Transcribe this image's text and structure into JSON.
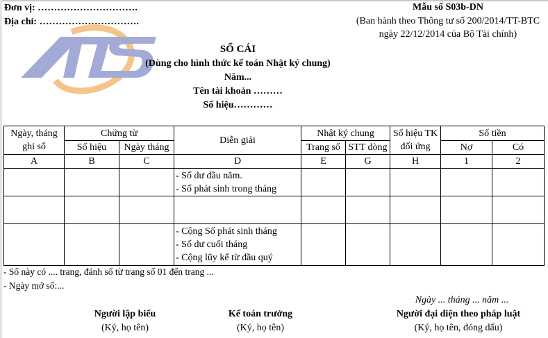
{
  "header": {
    "don_vi": "Đơn vị: ………………………….",
    "dia_chi": "Địa chỉ: ………………………….",
    "form_code": "Mẫu số S03b-DN",
    "decree_line1": "(Ban hành theo Thông tư số 200/2014/TT-BTC",
    "decree_line2": "ngày 22/12/2014 của Bộ Tài chính)"
  },
  "logo": {
    "text": "ATS",
    "colors": {
      "letters": "#a3aad6",
      "arc": "#f5c48a"
    }
  },
  "title": {
    "main": "SỔ CÁI",
    "subtitle": "(Dùng cho hình thức kế toán Nhật ký chung)",
    "year": "Năm...",
    "account_name": "Tên tài khoản ………",
    "account_code": "Số hiệu…………"
  },
  "table": {
    "headers": {
      "ngay_thang": "Ngày, tháng ghi sổ",
      "chung_tu": "Chứng từ",
      "so_hieu": "Số hiệu",
      "ngay_thang_ct": "Ngày tháng",
      "dien_giai": "Diễn giải",
      "nhat_ky_chung": "Nhật ký chung",
      "trang_so": "Trang số",
      "stt_dong": "STT dòng",
      "so_hieu_tk": "Số hiệu TK đối ứng",
      "so_tien": "Số tiền",
      "no": "Nợ",
      "co": "Có"
    },
    "codes": [
      "A",
      "B",
      "C",
      "D",
      "E",
      "G",
      "H",
      "1",
      "2"
    ],
    "rows": [
      {
        "dien_giai": [
          "- Số dư đầu năm.",
          "- Số phát sinh trong tháng"
        ]
      },
      {
        "dien_giai": []
      },
      {
        "dien_giai": [
          "- Cộng Số phát sinh tháng",
          "- Số dư cuối tháng",
          "- Cộng lũy kế từ đầu quý"
        ]
      }
    ]
  },
  "footer": {
    "note1": "- Sổ này có .... trang, đánh số từ trang số 01  đến trang ...",
    "note2": "- Ngày mở sổ:...",
    "date": "Ngày ... tháng ... năm ...",
    "signers": [
      {
        "title": "Người lập biểu",
        "note": "(Ký, họ tên)"
      },
      {
        "title": "Kế toán trưởng",
        "note": "(Ký, họ tên)"
      },
      {
        "title": "Người đại diện theo pháp luật",
        "note": "(Ký, họ tên, đóng dấu)"
      }
    ]
  }
}
